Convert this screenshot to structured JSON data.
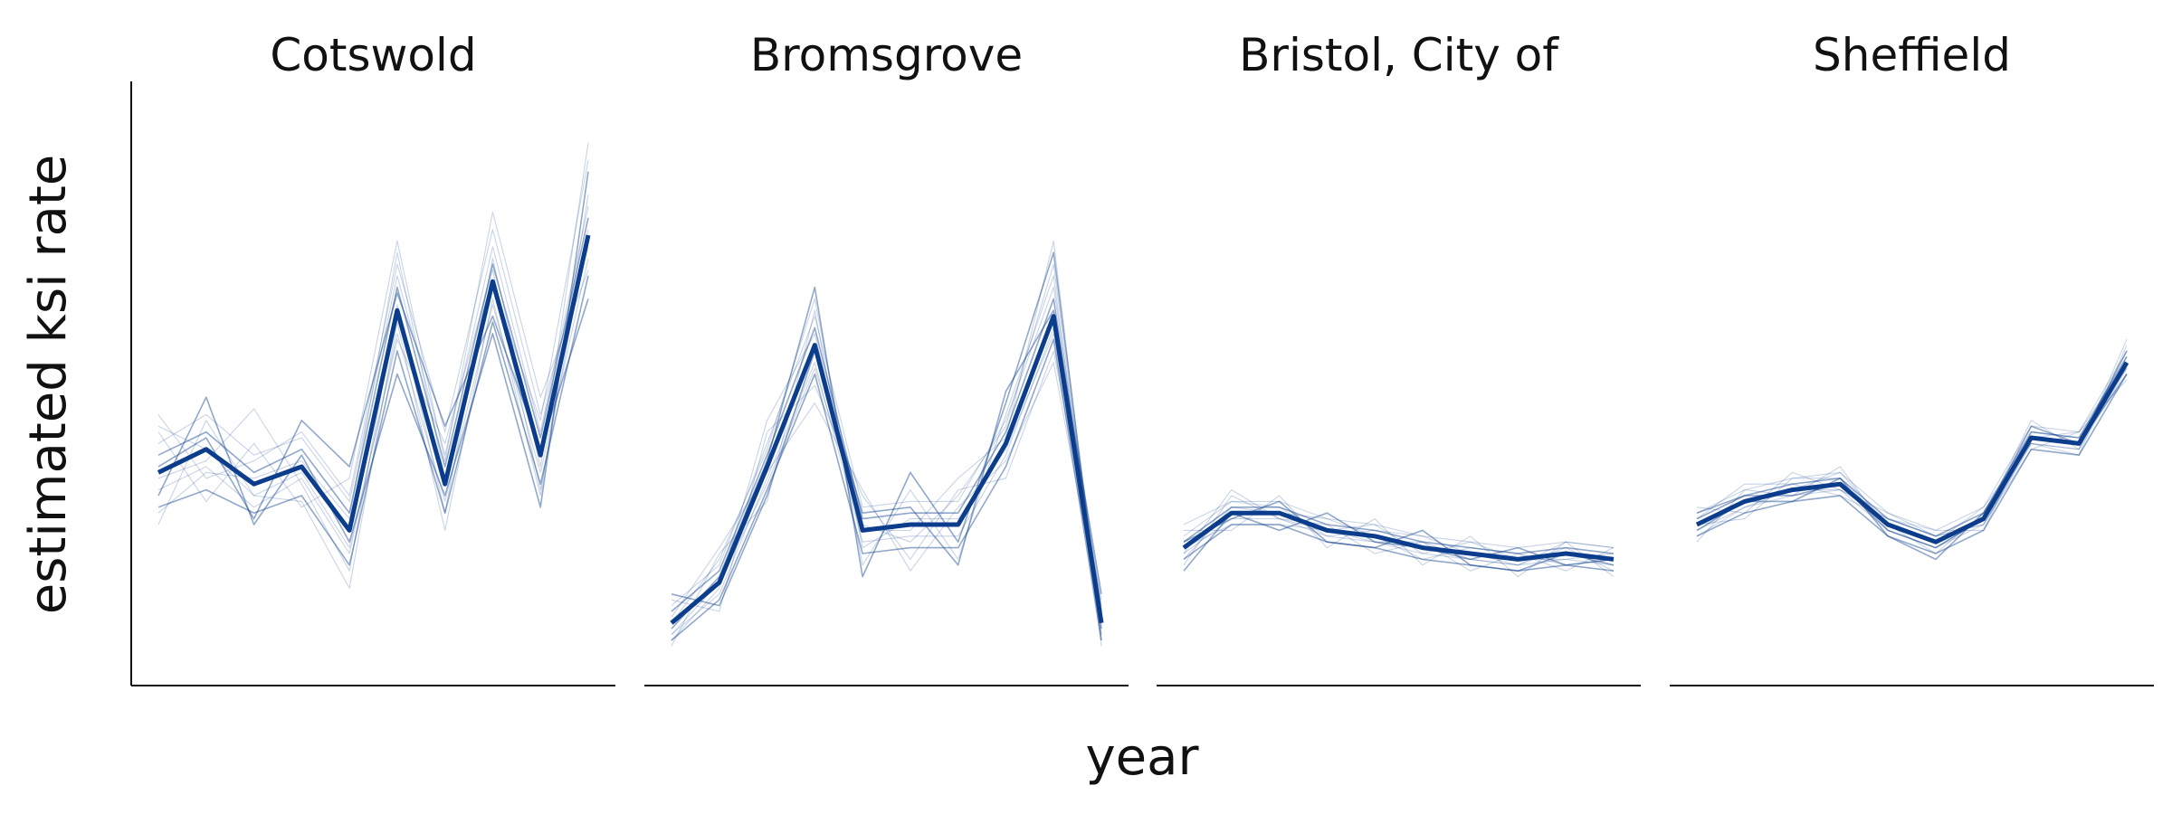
{
  "chart_data": {
    "type": "line",
    "xlabel": "year",
    "ylabel": "estimated ksi rate",
    "ylim": [
      0,
      100
    ],
    "grid": false,
    "legend": "none",
    "colors": {
      "line": "#0b3d8c",
      "axis": "#111111"
    },
    "x": [
      1,
      2,
      3,
      4,
      5,
      6,
      7,
      8,
      9,
      10
    ],
    "panels": [
      {
        "title": "Cotswold",
        "mean": [
          34,
          38,
          32,
          35,
          24,
          62,
          32,
          67,
          37,
          75
        ],
        "samples": [
          [
            28,
            31,
            27,
            30,
            18,
            55,
            27,
            60,
            32,
            68
          ],
          [
            39,
            44,
            37,
            40,
            29,
            68,
            37,
            73,
            41,
            80
          ],
          [
            31,
            35,
            28,
            33,
            20,
            58,
            29,
            63,
            34,
            71
          ],
          [
            37,
            41,
            34,
            38,
            27,
            66,
            35,
            70,
            40,
            78
          ],
          [
            25,
            43,
            30,
            29,
            14,
            60,
            24,
            64,
            30,
            82
          ],
          [
            44,
            33,
            36,
            41,
            30,
            70,
            41,
            76,
            44,
            73
          ],
          [
            30,
            47,
            25,
            37,
            22,
            51,
            30,
            58,
            28,
            86
          ],
          [
            41,
            29,
            39,
            28,
            33,
            74,
            36,
            79,
            47,
            69
          ],
          [
            33,
            36,
            45,
            32,
            17,
            63,
            27,
            71,
            35,
            91
          ],
          [
            35,
            40,
            26,
            43,
            35,
            65,
            42,
            61,
            38,
            64
          ],
          [
            27,
            34,
            33,
            36,
            26,
            72,
            33,
            66,
            43,
            88
          ],
          [
            42,
            38,
            30,
            34,
            21,
            57,
            39,
            69,
            31,
            76
          ]
        ]
      },
      {
        "title": "Bromsgrove",
        "mean": [
          8,
          15,
          35,
          56,
          24,
          25,
          25,
          39,
          61,
          8
        ],
        "samples": [
          [
            5,
            12,
            31,
            51,
            20,
            21,
            21,
            35,
            57,
            5
          ],
          [
            11,
            18,
            39,
            61,
            28,
            29,
            29,
            43,
            66,
            11
          ],
          [
            6,
            13,
            33,
            53,
            22,
            23,
            23,
            37,
            59,
            6
          ],
          [
            10,
            17,
            37,
            59,
            26,
            27,
            27,
            41,
            64,
            10
          ],
          [
            4,
            20,
            29,
            62,
            18,
            31,
            19,
            44,
            68,
            4
          ],
          [
            12,
            10,
            41,
            49,
            30,
            19,
            31,
            33,
            55,
            12
          ],
          [
            7,
            16,
            36,
            66,
            16,
            34,
            22,
            46,
            72,
            7
          ],
          [
            9,
            21,
            34,
            46,
            31,
            17,
            28,
            36,
            53,
            9
          ],
          [
            5,
            14,
            43,
            58,
            24,
            24,
            33,
            40,
            74,
            5
          ],
          [
            13,
            11,
            30,
            55,
            27,
            28,
            18,
            48,
            62,
            13
          ],
          [
            8,
            19,
            38,
            64,
            21,
            26,
            26,
            38,
            58,
            8
          ],
          [
            6,
            15,
            32,
            52,
            25,
            22,
            30,
            42,
            70,
            6
          ]
        ]
      },
      {
        "title": "Bristol, City of",
        "mean": [
          21,
          27,
          27,
          24,
          23,
          21,
          20,
          19,
          20,
          19
        ],
        "samples": [
          [
            19,
            25,
            25,
            22,
            21,
            19,
            18,
            17,
            18,
            17
          ],
          [
            23,
            29,
            29,
            26,
            25,
            23,
            22,
            21,
            22,
            21
          ],
          [
            20,
            26,
            26,
            23,
            22,
            20,
            19,
            18,
            19,
            18
          ],
          [
            22,
            28,
            28,
            25,
            24,
            22,
            21,
            20,
            21,
            20
          ],
          [
            18,
            30,
            26,
            25,
            20,
            22,
            17,
            20,
            17,
            21
          ],
          [
            24,
            24,
            30,
            21,
            26,
            18,
            23,
            16,
            22,
            16
          ],
          [
            17,
            27,
            24,
            27,
            22,
            21,
            19,
            21,
            18,
            19
          ],
          [
            25,
            29,
            28,
            23,
            24,
            23,
            20,
            18,
            21,
            17
          ],
          [
            20,
            31,
            26,
            24,
            25,
            20,
            22,
            19,
            19,
            20
          ],
          [
            22,
            26,
            29,
            22,
            21,
            24,
            18,
            17,
            20,
            18
          ],
          [
            19,
            28,
            27,
            26,
            23,
            19,
            21,
            20,
            18,
            19
          ],
          [
            21,
            25,
            25,
            24,
            22,
            22,
            19,
            18,
            22,
            21
          ]
        ]
      },
      {
        "title": "Sheffield",
        "mean": [
          25,
          29,
          31,
          32,
          25,
          22,
          26,
          40,
          39,
          53
        ],
        "samples": [
          [
            23,
            27,
            29,
            30,
            23,
            20,
            24,
            38,
            37,
            51
          ],
          [
            27,
            31,
            33,
            34,
            27,
            24,
            28,
            42,
            41,
            55
          ],
          [
            24,
            28,
            30,
            31,
            24,
            21,
            25,
            39,
            38,
            52
          ],
          [
            26,
            30,
            32,
            33,
            26,
            23,
            27,
            41,
            40,
            54
          ],
          [
            22,
            31,
            30,
            35,
            24,
            21,
            26,
            43,
            38,
            57
          ],
          [
            28,
            27,
            34,
            31,
            27,
            23,
            25,
            38,
            41,
            50
          ],
          [
            24,
            29,
            29,
            33,
            23,
            19,
            27,
            40,
            39,
            55
          ],
          [
            26,
            32,
            32,
            30,
            26,
            24,
            24,
            41,
            40,
            52
          ],
          [
            23,
            28,
            31,
            34,
            25,
            22,
            28,
            39,
            37,
            56
          ],
          [
            27,
            30,
            30,
            32,
            24,
            21,
            26,
            42,
            39,
            51
          ],
          [
            25,
            26,
            33,
            33,
            25,
            20,
            27,
            40,
            41,
            53
          ],
          [
            25,
            29,
            31,
            31,
            26,
            23,
            25,
            39,
            38,
            54
          ]
        ]
      }
    ]
  }
}
